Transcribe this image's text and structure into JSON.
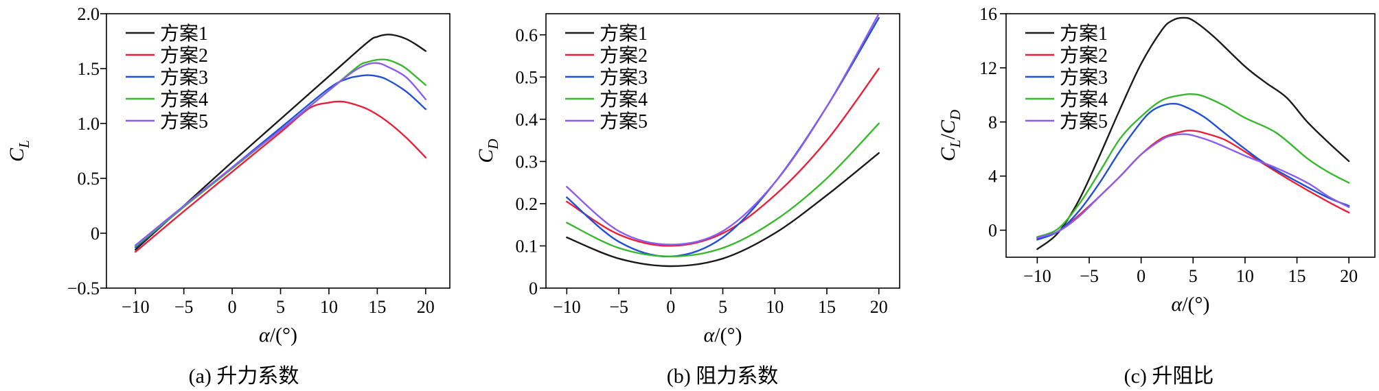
{
  "colors": {
    "方案1": "#1a1a1a",
    "方案2": "#e8203a",
    "方案3": "#1f4fd6",
    "方案4": "#38b82c",
    "方案5": "#8a5cf0"
  },
  "chart_data": [
    {
      "type": "line",
      "caption": "(a) 升力系数",
      "ylabel": "C_L",
      "ylabel_main": "C",
      "ylabel_sub": "L",
      "xlabel": "α/(°)",
      "xlim": [
        -13,
        22.5
      ],
      "ylim": [
        -0.5,
        2.0
      ],
      "xticks": [
        -10,
        -5,
        0,
        5,
        10,
        15,
        20
      ],
      "yticks": [
        -0.5,
        0,
        0.5,
        1.0,
        1.5,
        2.0
      ],
      "ytick_labels": [
        "−0.5",
        "0",
        "0.5",
        "1.0",
        "1.5",
        "2.0"
      ],
      "legend_position": "top-left",
      "series": [
        {
          "name": "方案1",
          "x": [
            -10,
            -5,
            0,
            5,
            10,
            14,
            15,
            16,
            17,
            18,
            19,
            20
          ],
          "y": [
            -0.15,
            0.25,
            0.65,
            1.04,
            1.43,
            1.74,
            1.79,
            1.81,
            1.8,
            1.77,
            1.72,
            1.66
          ]
        },
        {
          "name": "方案2",
          "x": [
            -10,
            -5,
            0,
            5,
            8,
            10,
            11,
            12,
            14,
            16,
            18,
            20
          ],
          "y": [
            -0.17,
            0.2,
            0.56,
            0.92,
            1.14,
            1.19,
            1.2,
            1.19,
            1.13,
            1.02,
            0.87,
            0.69
          ]
        },
        {
          "name": "方案3",
          "x": [
            -10,
            -5,
            0,
            5,
            10,
            12,
            13,
            14,
            15,
            16,
            18,
            20
          ],
          "y": [
            -0.13,
            0.24,
            0.6,
            0.96,
            1.32,
            1.41,
            1.43,
            1.44,
            1.43,
            1.4,
            1.29,
            1.13
          ]
        },
        {
          "name": "方案4",
          "x": [
            -10,
            -5,
            0,
            5,
            10,
            13,
            14,
            15,
            16,
            17,
            18,
            20
          ],
          "y": [
            -0.12,
            0.24,
            0.59,
            0.94,
            1.3,
            1.52,
            1.56,
            1.58,
            1.58,
            1.55,
            1.5,
            1.35
          ]
        },
        {
          "name": "方案5",
          "x": [
            -10,
            -5,
            0,
            5,
            10,
            12,
            13,
            14,
            15,
            16,
            18,
            20
          ],
          "y": [
            -0.11,
            0.25,
            0.6,
            0.94,
            1.3,
            1.44,
            1.5,
            1.54,
            1.55,
            1.52,
            1.42,
            1.22
          ]
        }
      ]
    },
    {
      "type": "line",
      "caption": "(b) 阻力系数",
      "ylabel": "C_D",
      "ylabel_main": "C",
      "ylabel_sub": "D",
      "xlabel": "α/(°)",
      "xlim": [
        -12,
        22
      ],
      "ylim": [
        0,
        0.65
      ],
      "xticks": [
        -10,
        -5,
        0,
        5,
        10,
        15,
        20
      ],
      "yticks": [
        0,
        0.1,
        0.2,
        0.3,
        0.4,
        0.5,
        0.6
      ],
      "ytick_labels": [
        "0",
        "0.1",
        "0.2",
        "0.3",
        "0.4",
        "0.5",
        "0.6"
      ],
      "legend_position": "top-left",
      "series": [
        {
          "name": "方案1",
          "x": [
            -10,
            -5,
            0,
            5,
            10,
            15,
            20
          ],
          "y": [
            0.12,
            0.07,
            0.052,
            0.07,
            0.13,
            0.22,
            0.32
          ]
        },
        {
          "name": "方案2",
          "x": [
            -10,
            -5,
            0,
            5,
            10,
            15,
            20
          ],
          "y": [
            0.205,
            0.127,
            0.1,
            0.13,
            0.22,
            0.35,
            0.52
          ]
        },
        {
          "name": "方案3",
          "x": [
            -10,
            -5,
            0,
            5,
            10,
            15,
            20
          ],
          "y": [
            0.215,
            0.11,
            0.075,
            0.12,
            0.25,
            0.43,
            0.64
          ]
        },
        {
          "name": "方案4",
          "x": [
            -10,
            -5,
            0,
            5,
            10,
            15,
            20
          ],
          "y": [
            0.155,
            0.095,
            0.075,
            0.095,
            0.16,
            0.26,
            0.39
          ]
        },
        {
          "name": "方案5",
          "x": [
            -10,
            -5,
            0,
            5,
            10,
            15,
            20
          ],
          "y": [
            0.24,
            0.135,
            0.103,
            0.135,
            0.25,
            0.43,
            0.65
          ]
        }
      ]
    },
    {
      "type": "line",
      "caption": "(c) 升阻比",
      "ylabel": "C_L/C_D",
      "ylabel_main": "C",
      "ylabel_sub": "L",
      "ylabel_sep": "/C",
      "ylabel_sub2": "D",
      "xlabel": "α/(°)",
      "xlim": [
        -13,
        22.5
      ],
      "ylim": [
        -2,
        16
      ],
      "xticks": [
        -10,
        -5,
        0,
        5,
        10,
        15,
        20
      ],
      "yticks": [
        0,
        4,
        8,
        12,
        16
      ],
      "ytick_labels": [
        "0",
        "4",
        "8",
        "12",
        "16"
      ],
      "legend_position": "top-left",
      "series": [
        {
          "name": "方案1",
          "x": [
            -10,
            -8,
            -6,
            -4,
            -2,
            0,
            2,
            3,
            4,
            5,
            7,
            10,
            12,
            14,
            16,
            18,
            20
          ],
          "y": [
            -1.4,
            -0.2,
            2.2,
            5.5,
            9.0,
            12.3,
            14.8,
            15.5,
            15.7,
            15.5,
            14.3,
            12.1,
            10.9,
            9.8,
            8.0,
            6.5,
            5.1
          ]
        },
        {
          "name": "方案2",
          "x": [
            -10,
            -8,
            -6,
            -4,
            -2,
            0,
            2,
            4,
            5,
            6,
            8,
            10,
            12,
            15,
            18,
            20
          ],
          "y": [
            -0.6,
            -0.1,
            1.1,
            2.5,
            4.0,
            5.6,
            6.8,
            7.3,
            7.35,
            7.2,
            6.7,
            5.8,
            4.8,
            3.4,
            2.1,
            1.3
          ]
        },
        {
          "name": "方案3",
          "x": [
            -10,
            -8,
            -6,
            -4,
            -2,
            0,
            1,
            2,
            3,
            4,
            6,
            8,
            10,
            12,
            15,
            18,
            20
          ],
          "y": [
            -0.7,
            -0.1,
            1.4,
            3.5,
            5.9,
            8.0,
            8.8,
            9.2,
            9.35,
            9.2,
            8.4,
            7.2,
            6.0,
            4.9,
            3.6,
            2.4,
            1.8
          ]
        },
        {
          "name": "方案4",
          "x": [
            -10,
            -8,
            -6,
            -4,
            -2,
            0,
            2,
            4,
            5,
            6,
            8,
            10,
            13,
            16,
            18,
            20
          ],
          "y": [
            -0.5,
            0.1,
            1.9,
            4.3,
            6.8,
            8.4,
            9.6,
            10.0,
            10.05,
            9.9,
            9.2,
            8.3,
            7.2,
            5.3,
            4.3,
            3.5
          ]
        },
        {
          "name": "方案5",
          "x": [
            -10,
            -8,
            -6,
            -4,
            -2,
            0,
            2,
            3,
            4,
            5,
            7,
            10,
            13,
            16,
            18,
            20
          ],
          "y": [
            -0.55,
            -0.1,
            1.0,
            2.5,
            4.0,
            5.6,
            6.7,
            7.0,
            7.1,
            7.0,
            6.5,
            5.5,
            4.6,
            3.5,
            2.5,
            1.7
          ]
        }
      ]
    }
  ]
}
